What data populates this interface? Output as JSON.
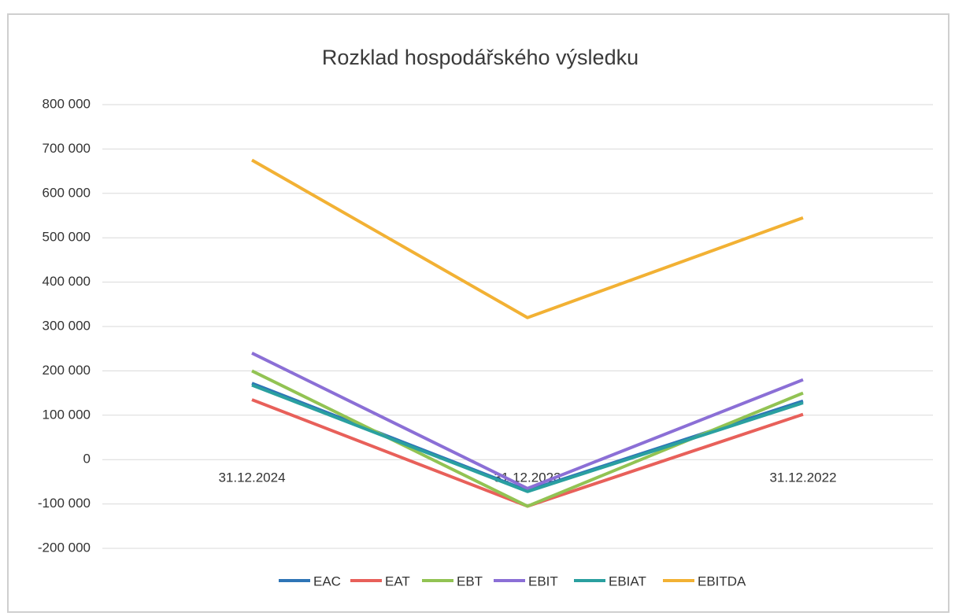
{
  "chart_data": {
    "type": "line",
    "title": "Rozklad hospodářského výsledku",
    "categories": [
      "31.12.2024",
      "31.12.2023",
      "31.12.2022"
    ],
    "series": [
      {
        "name": "EAC",
        "color": "#2e75b6",
        "values": [
          172000,
          -70000,
          132000
        ]
      },
      {
        "name": "EAT",
        "color": "#e8605a",
        "values": [
          135000,
          -105000,
          102000
        ]
      },
      {
        "name": "EBT",
        "color": "#92c353",
        "values": [
          200000,
          -105000,
          150000
        ]
      },
      {
        "name": "EBIT",
        "color": "#8b6fd6",
        "values": [
          240000,
          -65000,
          180000
        ]
      },
      {
        "name": "EBIAT",
        "color": "#2aa0a0",
        "values": [
          168000,
          -72000,
          128000
        ]
      },
      {
        "name": "EBITDA",
        "color": "#f2b134",
        "values": [
          675000,
          320000,
          545000
        ]
      }
    ],
    "ylim": [
      -200000,
      800000
    ],
    "yticks": [
      {
        "value": -200000,
        "label": "-200 000"
      },
      {
        "value": -100000,
        "label": "-100 000"
      },
      0,
      {
        "value": 100000,
        "label": "100 000"
      },
      {
        "value": 200000,
        "label": "200 000"
      },
      {
        "value": 300000,
        "label": "300 000"
      },
      {
        "value": 400000,
        "label": "400 000"
      },
      {
        "value": 500000,
        "label": "500 000"
      },
      {
        "value": 600000,
        "label": "600 000"
      },
      {
        "value": 700000,
        "label": "700 000"
      },
      {
        "value": 800000,
        "label": "800 000"
      }
    ],
    "grid": true,
    "legend": "bottom"
  }
}
